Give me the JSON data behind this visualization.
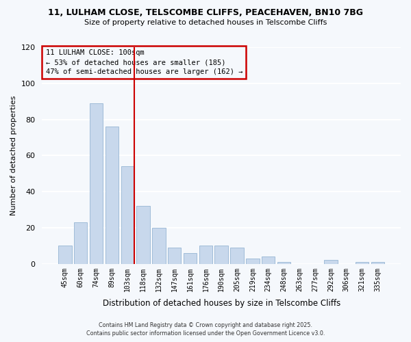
{
  "title": "11, LULHAM CLOSE, TELSCOMBE CLIFFS, PEACEHAVEN, BN10 7BG",
  "subtitle": "Size of property relative to detached houses in Telscombe Cliffs",
  "xlabel": "Distribution of detached houses by size in Telscombe Cliffs",
  "ylabel": "Number of detached properties",
  "bar_color": "#c8d8ec",
  "bar_edge_color": "#a0bcd8",
  "categories": [
    "45sqm",
    "60sqm",
    "74sqm",
    "89sqm",
    "103sqm",
    "118sqm",
    "132sqm",
    "147sqm",
    "161sqm",
    "176sqm",
    "190sqm",
    "205sqm",
    "219sqm",
    "234sqm",
    "248sqm",
    "263sqm",
    "277sqm",
    "292sqm",
    "306sqm",
    "321sqm",
    "335sqm"
  ],
  "values": [
    10,
    23,
    89,
    76,
    54,
    32,
    20,
    9,
    6,
    10,
    10,
    9,
    3,
    4,
    1,
    0,
    0,
    2,
    0,
    1,
    1
  ],
  "ylim": [
    0,
    120
  ],
  "yticks": [
    0,
    20,
    40,
    60,
    80,
    100,
    120
  ],
  "vline_index": 4,
  "vline_color": "#cc0000",
  "annotation_title": "11 LULHAM CLOSE: 100sqm",
  "annotation_line1": "← 53% of detached houses are smaller (185)",
  "annotation_line2": "47% of semi-detached houses are larger (162) →",
  "annotation_box_color": "#cc0000",
  "background_color": "#f5f8fc",
  "grid_color": "#e0e8f0",
  "footer1": "Contains HM Land Registry data © Crown copyright and database right 2025.",
  "footer2": "Contains public sector information licensed under the Open Government Licence v3.0."
}
